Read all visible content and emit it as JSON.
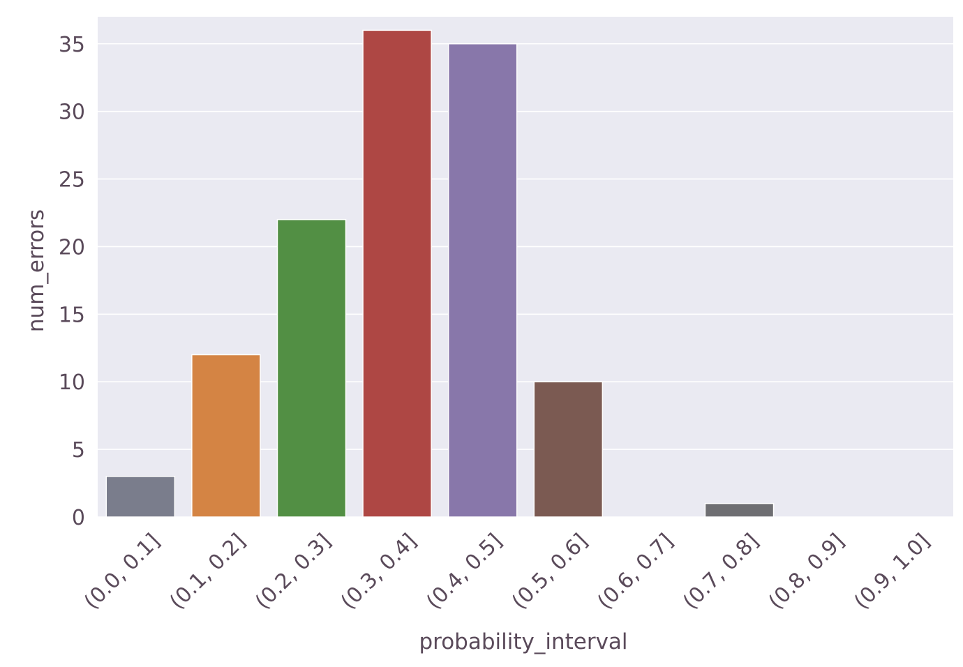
{
  "chart_data": {
    "type": "bar",
    "xlabel": "probability_interval",
    "ylabel": "num_errors",
    "categories": [
      "(0.0, 0.1]",
      "(0.1, 0.2]",
      "(0.2, 0.3]",
      "(0.3, 0.4]",
      "(0.4, 0.5]",
      "(0.5, 0.6]",
      "(0.6, 0.7]",
      "(0.7, 0.8]",
      "(0.8, 0.9]",
      "(0.9, 1.0]"
    ],
    "values": [
      3,
      12,
      22,
      36,
      35,
      10,
      0,
      1,
      0,
      0
    ],
    "colors": [
      "#7a7d8c",
      "#d48444",
      "#528f44",
      "#ae4744",
      "#8877aa",
      "#7b5a52",
      "#d885b5",
      "#6e6e72",
      "#b9b960",
      "#52a7b8"
    ],
    "yticks": [
      0,
      5,
      10,
      15,
      20,
      25,
      30,
      35
    ],
    "ylim": [
      0,
      37
    ],
    "grid": true,
    "legend": "none",
    "background": "#eaeaf2"
  }
}
